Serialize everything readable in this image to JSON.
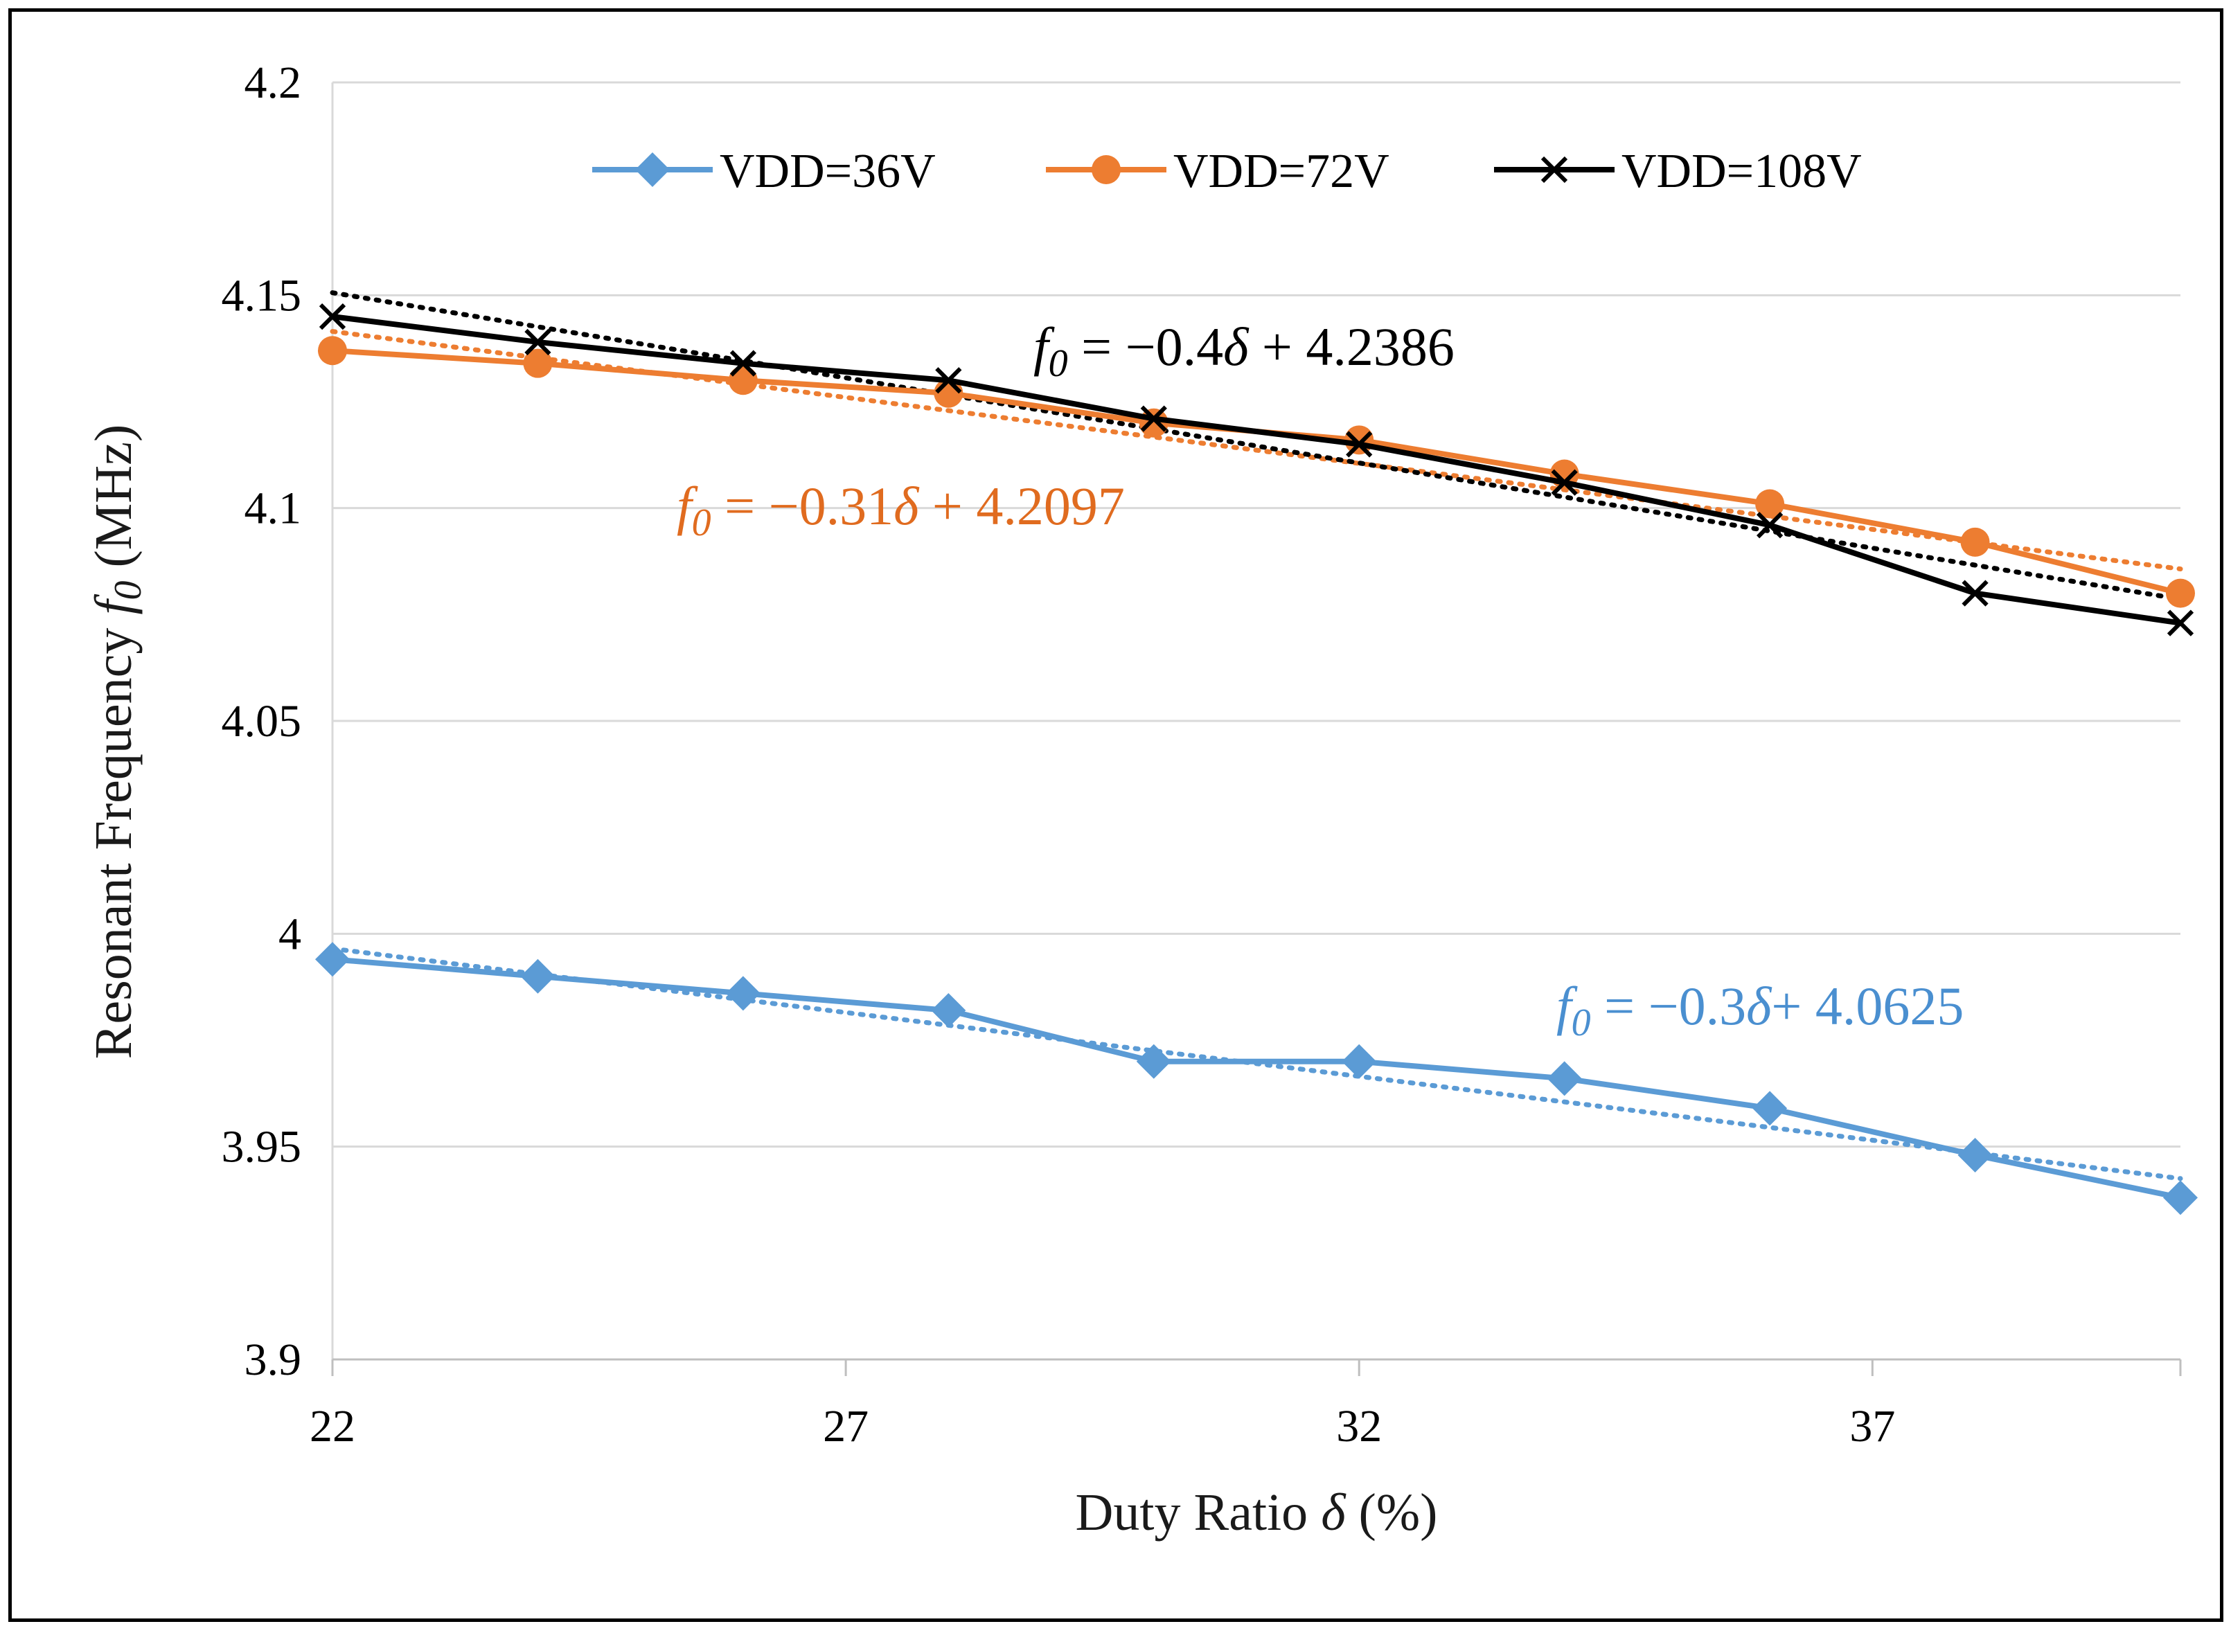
{
  "chart_data": {
    "type": "line",
    "title": "",
    "xlabel_prefix": "Duty Ratio ",
    "xlabel_symbol": "δ",
    "xlabel_suffix": " (%)",
    "ylabel_prefix": "Resonant Frequency ",
    "ylabel_symbol": "f",
    "ylabel_subscript": "0",
    "ylabel_suffix": " (MHz)",
    "xlim": [
      22,
      40
    ],
    "ylim": [
      3.9,
      4.2
    ],
    "xticks": [
      22,
      27,
      32,
      37
    ],
    "xtick_labels": [
      "22",
      "27",
      "32",
      "37"
    ],
    "yticks": [
      3.9,
      3.95,
      4.0,
      4.05,
      4.1,
      4.15,
      4.2
    ],
    "ytick_labels": [
      "3.9",
      "3.95",
      "4",
      "4.05",
      "4.1",
      "4.15",
      "4.2"
    ],
    "grid": "horizontal",
    "legend_position": "top",
    "x": [
      22,
      24,
      26,
      28,
      30,
      32,
      34,
      36,
      38,
      40
    ],
    "series": [
      {
        "name": "VDD=36V",
        "color": "#5b9bd5",
        "marker": "diamond",
        "values": [
          3.994,
          3.99,
          3.986,
          3.982,
          3.97,
          3.97,
          3.966,
          3.959,
          3.948,
          3.938
        ],
        "trend": {
          "slope": -0.3,
          "intercept": 4.0625
        },
        "equation": {
          "f": "f",
          "sub": "0",
          "body1": " = −0.3",
          "sym": "δ",
          "body2": "+ 4.0625"
        }
      },
      {
        "name": "VDD=72V",
        "color": "#ed7d31",
        "marker": "circle",
        "values": [
          4.137,
          4.134,
          4.13,
          4.127,
          4.12,
          4.116,
          4.108,
          4.101,
          4.092,
          4.08
        ],
        "trend": {
          "slope": -0.31,
          "intercept": 4.2097
        },
        "equation": {
          "f": "f",
          "sub": "0",
          "body1": " = −0.31",
          "sym": "δ",
          "body2": " + 4.2097"
        }
      },
      {
        "name": "VDD=108V",
        "color": "#000000",
        "marker": "x",
        "values": [
          4.145,
          4.139,
          4.134,
          4.13,
          4.121,
          4.115,
          4.106,
          4.096,
          4.08,
          4.073
        ],
        "trend": {
          "slope": -0.4,
          "intercept": 4.2386
        },
        "equation": {
          "f": "f",
          "sub": "0",
          "body1": " = −0.4",
          "sym": "δ",
          "body2": " + 4.2386"
        }
      }
    ]
  }
}
